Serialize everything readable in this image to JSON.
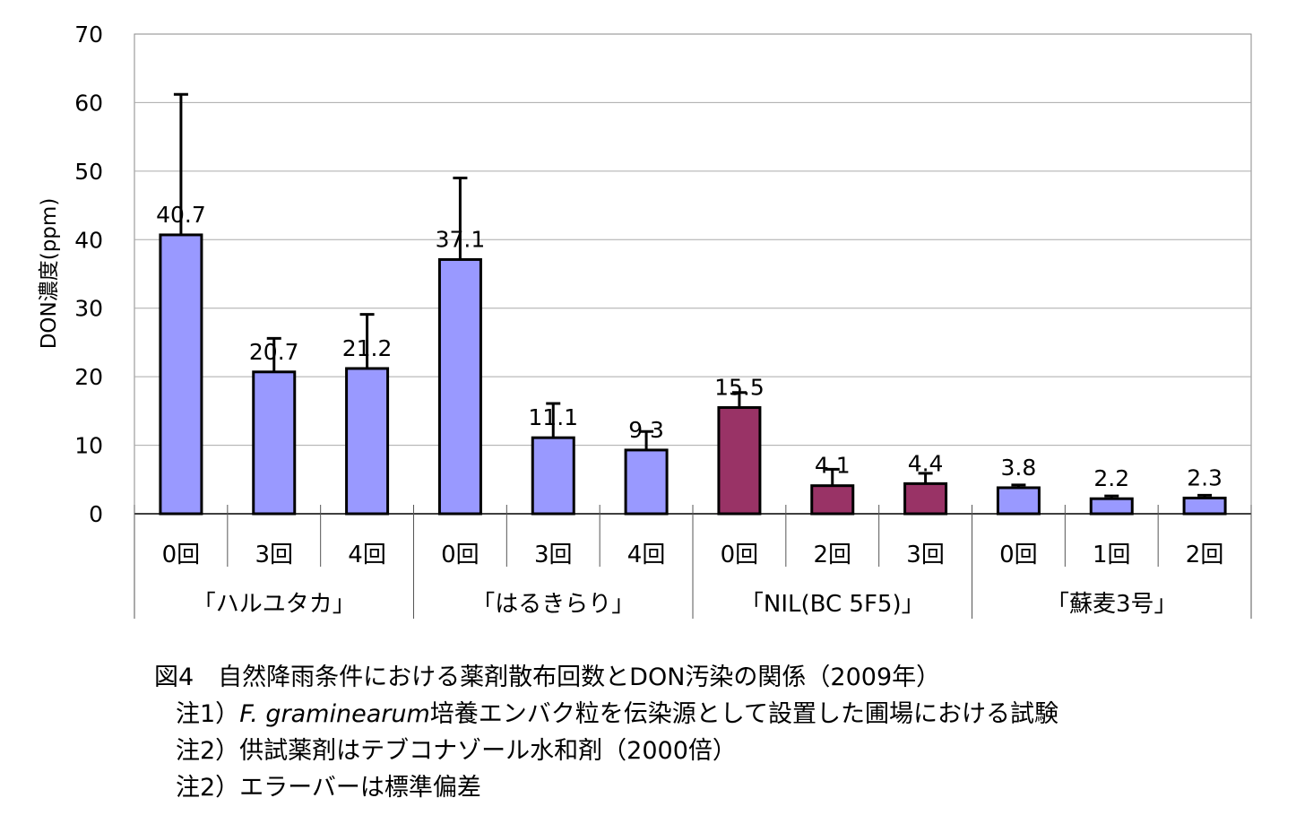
{
  "chart_data": {
    "type": "bar",
    "ylabel": "DON濃度(ppm)",
    "ylim": [
      0,
      70
    ],
    "yticks": [
      0,
      10,
      20,
      30,
      40,
      50,
      60,
      70
    ],
    "grid": true,
    "categories": [
      "0回",
      "3回",
      "4回",
      "0回",
      "3回",
      "4回",
      "0回",
      "2回",
      "3回",
      "0回",
      "1回",
      "2回"
    ],
    "groups": [
      {
        "label": "「ハルユタカ」",
        "count": 3
      },
      {
        "label": "「はるきらり」",
        "count": 3
      },
      {
        "label": "「NIL(BC 5F5)」",
        "count": 3
      },
      {
        "label": "「蘇麦3号」",
        "count": 3
      }
    ],
    "values": [
      40.7,
      20.7,
      21.2,
      37.1,
      11.1,
      9.3,
      15.5,
      4.1,
      4.4,
      3.8,
      2.2,
      2.3
    ],
    "value_labels": [
      "40.7",
      "20.7",
      "21.2",
      "37.1",
      "11.1",
      "9.3",
      "15.5",
      "4.1",
      "4.4",
      "3.8",
      "2.2",
      "2.3"
    ],
    "error_upper": [
      61.2,
      25.6,
      29.1,
      49.0,
      16.1,
      12.0,
      17.7,
      6.5,
      5.9,
      4.2,
      2.6,
      2.7
    ],
    "colors": [
      "#9999FF",
      "#9999FF",
      "#9999FF",
      "#9999FF",
      "#9999FF",
      "#9999FF",
      "#993366",
      "#993366",
      "#993366",
      "#9999FF",
      "#9999FF",
      "#9999FF"
    ]
  },
  "caption": {
    "title": "図4　自然降雨条件における薬剤散布回数とDON汚染の関係（2009年）",
    "note1_prefix": "注1）",
    "note1_italic": "F. graminearum",
    "note1_suffix": "培養エンバク粒を伝染源として設置した圃場における試験",
    "note2": "注2）供試薬剤はテブコナゾール水和剤（2000倍）",
    "note3": "注2）エラーバーは標準偏差"
  }
}
